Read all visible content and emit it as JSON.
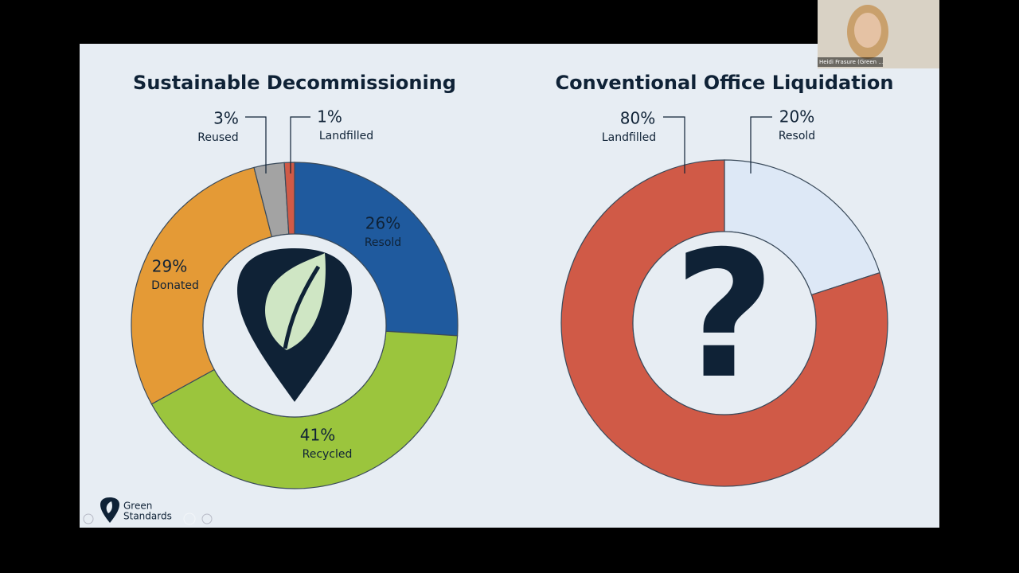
{
  "chart_data": [
    {
      "type": "donut",
      "title": "Sustainable Decommissioning",
      "categories": [
        "Resold",
        "Recycled",
        "Donated",
        "Reused",
        "Landfilled"
      ],
      "values": [
        26,
        41,
        29,
        3,
        1
      ],
      "value_labels": [
        "26%",
        "41%",
        "29%",
        "3%",
        "1%"
      ],
      "colors": [
        "#1f5a9e",
        "#9bc53d",
        "#e49a36",
        "#a3a3a3",
        "#d05a47"
      ]
    },
    {
      "type": "donut",
      "title": "Conventional Office Liquidation",
      "categories": [
        "Resold",
        "Landfilled"
      ],
      "values": [
        20,
        80
      ],
      "value_labels": [
        "20%",
        "80%"
      ],
      "colors": [
        "#dde8f6",
        "#d05a47"
      ],
      "center_text": "?"
    }
  ],
  "logo": {
    "line1": "Green",
    "line2": "Standards"
  },
  "participant": {
    "name": "Heidi Frasure (Green ..."
  }
}
